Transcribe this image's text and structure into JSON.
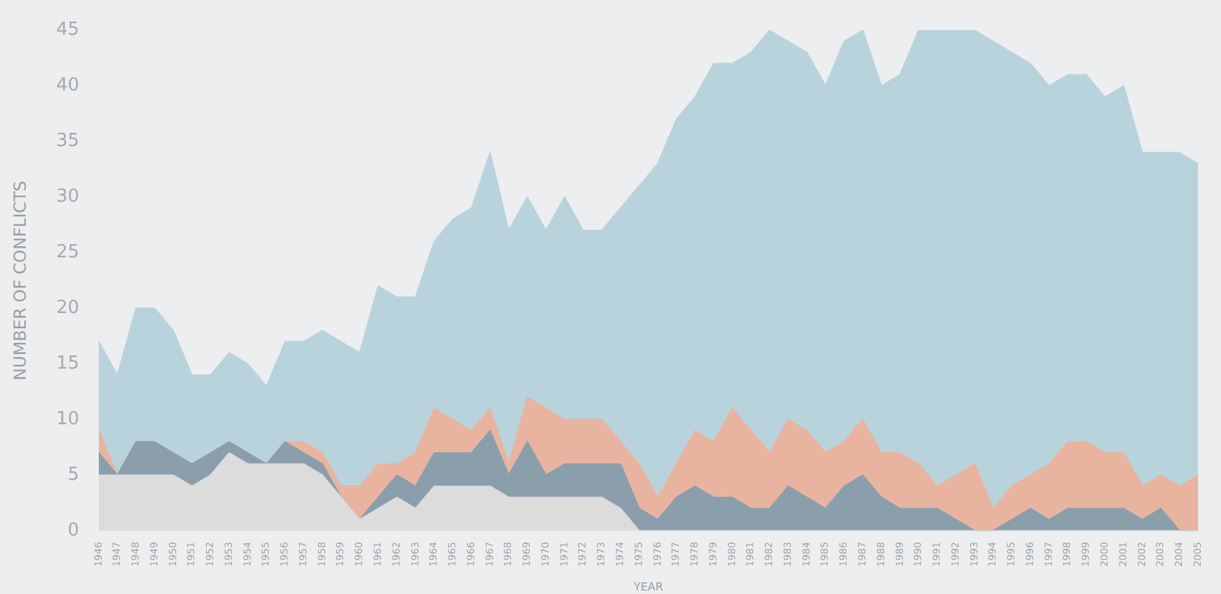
{
  "chart_data": {
    "type": "area",
    "stacked": true,
    "xlabel": "YEAR",
    "ylabel": "NUMBER OF CONFLICTS",
    "categories": [
      "1946",
      "1947",
      "1948",
      "1949",
      "1950",
      "1951",
      "1952",
      "1953",
      "1954",
      "1955",
      "1956",
      "1957",
      "1958",
      "1959",
      "1960",
      "1961",
      "1962",
      "1963",
      "1964",
      "1965",
      "1966",
      "1967",
      "1968",
      "1969",
      "1970",
      "1971",
      "1972",
      "1973",
      "1974",
      "1975",
      "1976",
      "1977",
      "1978",
      "1979",
      "1980",
      "1981",
      "1982",
      "1983",
      "1984",
      "1985",
      "1986",
      "1987",
      "1988",
      "1989",
      "1990",
      "1991",
      "1992",
      "1993",
      "1994",
      "1995",
      "1996",
      "1997",
      "1998",
      "1999",
      "2000",
      "2001",
      "2002",
      "2003",
      "2004",
      "2005"
    ],
    "ylim": [
      0,
      45
    ],
    "yticks": [
      0,
      5,
      10,
      15,
      20,
      25,
      30,
      35,
      40,
      45
    ],
    "grid": false,
    "legend": false,
    "series": [
      {
        "color": "#dcdcdc",
        "values": [
          5,
          5,
          5,
          5,
          5,
          4,
          5,
          7,
          6,
          6,
          6,
          6,
          5,
          3,
          1,
          2,
          3,
          2,
          4,
          4,
          4,
          4,
          3,
          3,
          3,
          3,
          3,
          3,
          2,
          0,
          0,
          0,
          0,
          0,
          0,
          0,
          0,
          0,
          0,
          0,
          0,
          0,
          0,
          0,
          0,
          0,
          0,
          0,
          0,
          0,
          0,
          0,
          0,
          0,
          0,
          0,
          0,
          0,
          0,
          0
        ]
      },
      {
        "color": "#8b9eab",
        "values": [
          2,
          0,
          3,
          3,
          2,
          2,
          2,
          1,
          1,
          0,
          2,
          1,
          1,
          0,
          0,
          1,
          2,
          2,
          3,
          3,
          3,
          5,
          2,
          5,
          2,
          3,
          3,
          3,
          4,
          2,
          1,
          3,
          4,
          3,
          3,
          2,
          2,
          4,
          3,
          2,
          4,
          5,
          3,
          2,
          2,
          2,
          1,
          0,
          0,
          1,
          2,
          1,
          2,
          2,
          2,
          2,
          1,
          2,
          0,
          0
        ]
      },
      {
        "color": "#e8b4a0",
        "values": [
          2,
          0,
          0,
          0,
          0,
          0,
          0,
          0,
          0,
          0,
          0,
          1,
          1,
          1,
          3,
          3,
          1,
          3,
          4,
          3,
          2,
          2,
          1,
          4,
          6,
          4,
          4,
          4,
          2,
          4,
          2,
          3,
          5,
          5,
          8,
          7,
          5,
          6,
          6,
          5,
          4,
          5,
          4,
          5,
          4,
          2,
          4,
          6,
          2,
          3,
          3,
          5,
          6,
          6,
          5,
          5,
          3,
          3,
          4,
          5
        ]
      },
      {
        "color": "#b9d3dc",
        "values": [
          8,
          9,
          12,
          12,
          11,
          8,
          7,
          8,
          8,
          7,
          9,
          9,
          11,
          13,
          12,
          16,
          15,
          14,
          15,
          18,
          20,
          23,
          21,
          18,
          16,
          20,
          17,
          17,
          21,
          25,
          30,
          31,
          30,
          34,
          31,
          34,
          38,
          34,
          34,
          33,
          36,
          35,
          33,
          34,
          39,
          41,
          40,
          39,
          42,
          39,
          37,
          34,
          33,
          33,
          32,
          33,
          30,
          29,
          30,
          28
        ]
      }
    ]
  }
}
